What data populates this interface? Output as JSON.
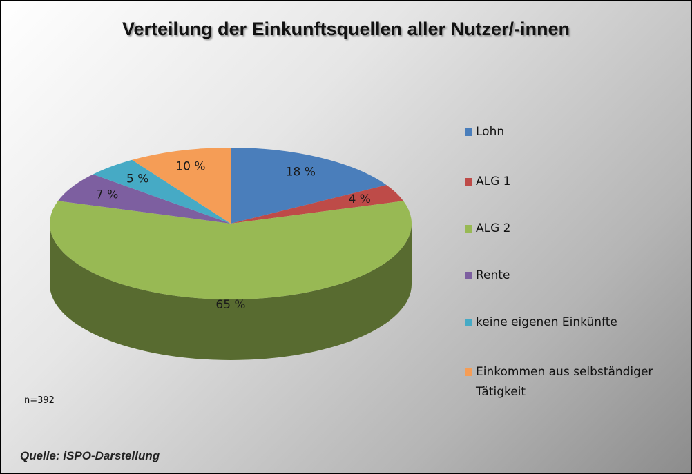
{
  "chart_data": {
    "type": "pie3d",
    "title": "Verteilung der Einkunftsquellen aller Nutzer/-innen",
    "categories": [
      "Lohn",
      "ALG 1",
      "ALG 2",
      "Rente",
      "keine eigenen Einkünfte",
      "Einkommen aus selbständiger Tätigkeit"
    ],
    "values": [
      18,
      4,
      65,
      7,
      5,
      10
    ],
    "value_labels": [
      "18 %",
      "4 %",
      "65 %",
      "7 %",
      "5 %",
      "10 %"
    ],
    "colors": [
      "#4a7ebb",
      "#be4b48",
      "#98b954",
      "#7d5fa0",
      "#46aac5",
      "#f59d56"
    ],
    "legend": "right",
    "note": "n=392",
    "source": "Quelle: iSPO-Darstellung"
  }
}
